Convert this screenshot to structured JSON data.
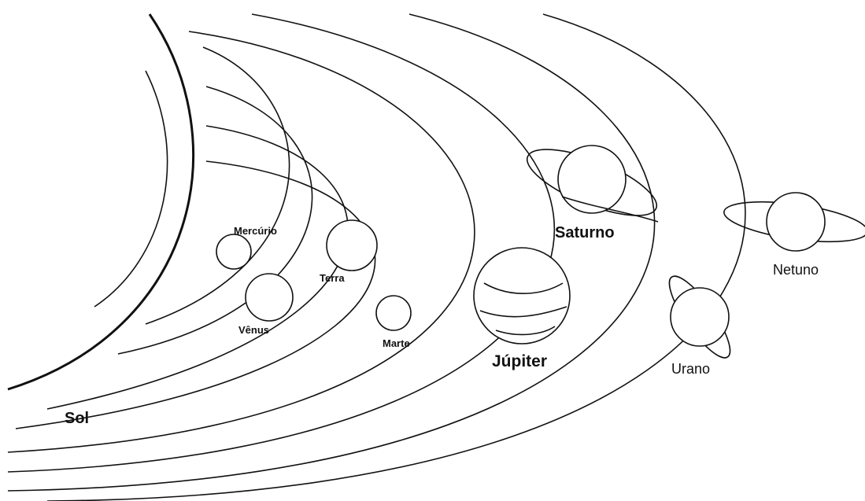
{
  "nodes": [
    {
      "label": "Sol"
    },
    {
      "label": "Mercúrio"
    },
    {
      "label": "Vênus"
    },
    {
      "label": "Terra"
    },
    {
      "label": "Marte"
    },
    {
      "label": "Júpiter"
    },
    {
      "label": "Saturno"
    },
    {
      "label": "Urano"
    },
    {
      "label": "Netuno"
    }
  ]
}
